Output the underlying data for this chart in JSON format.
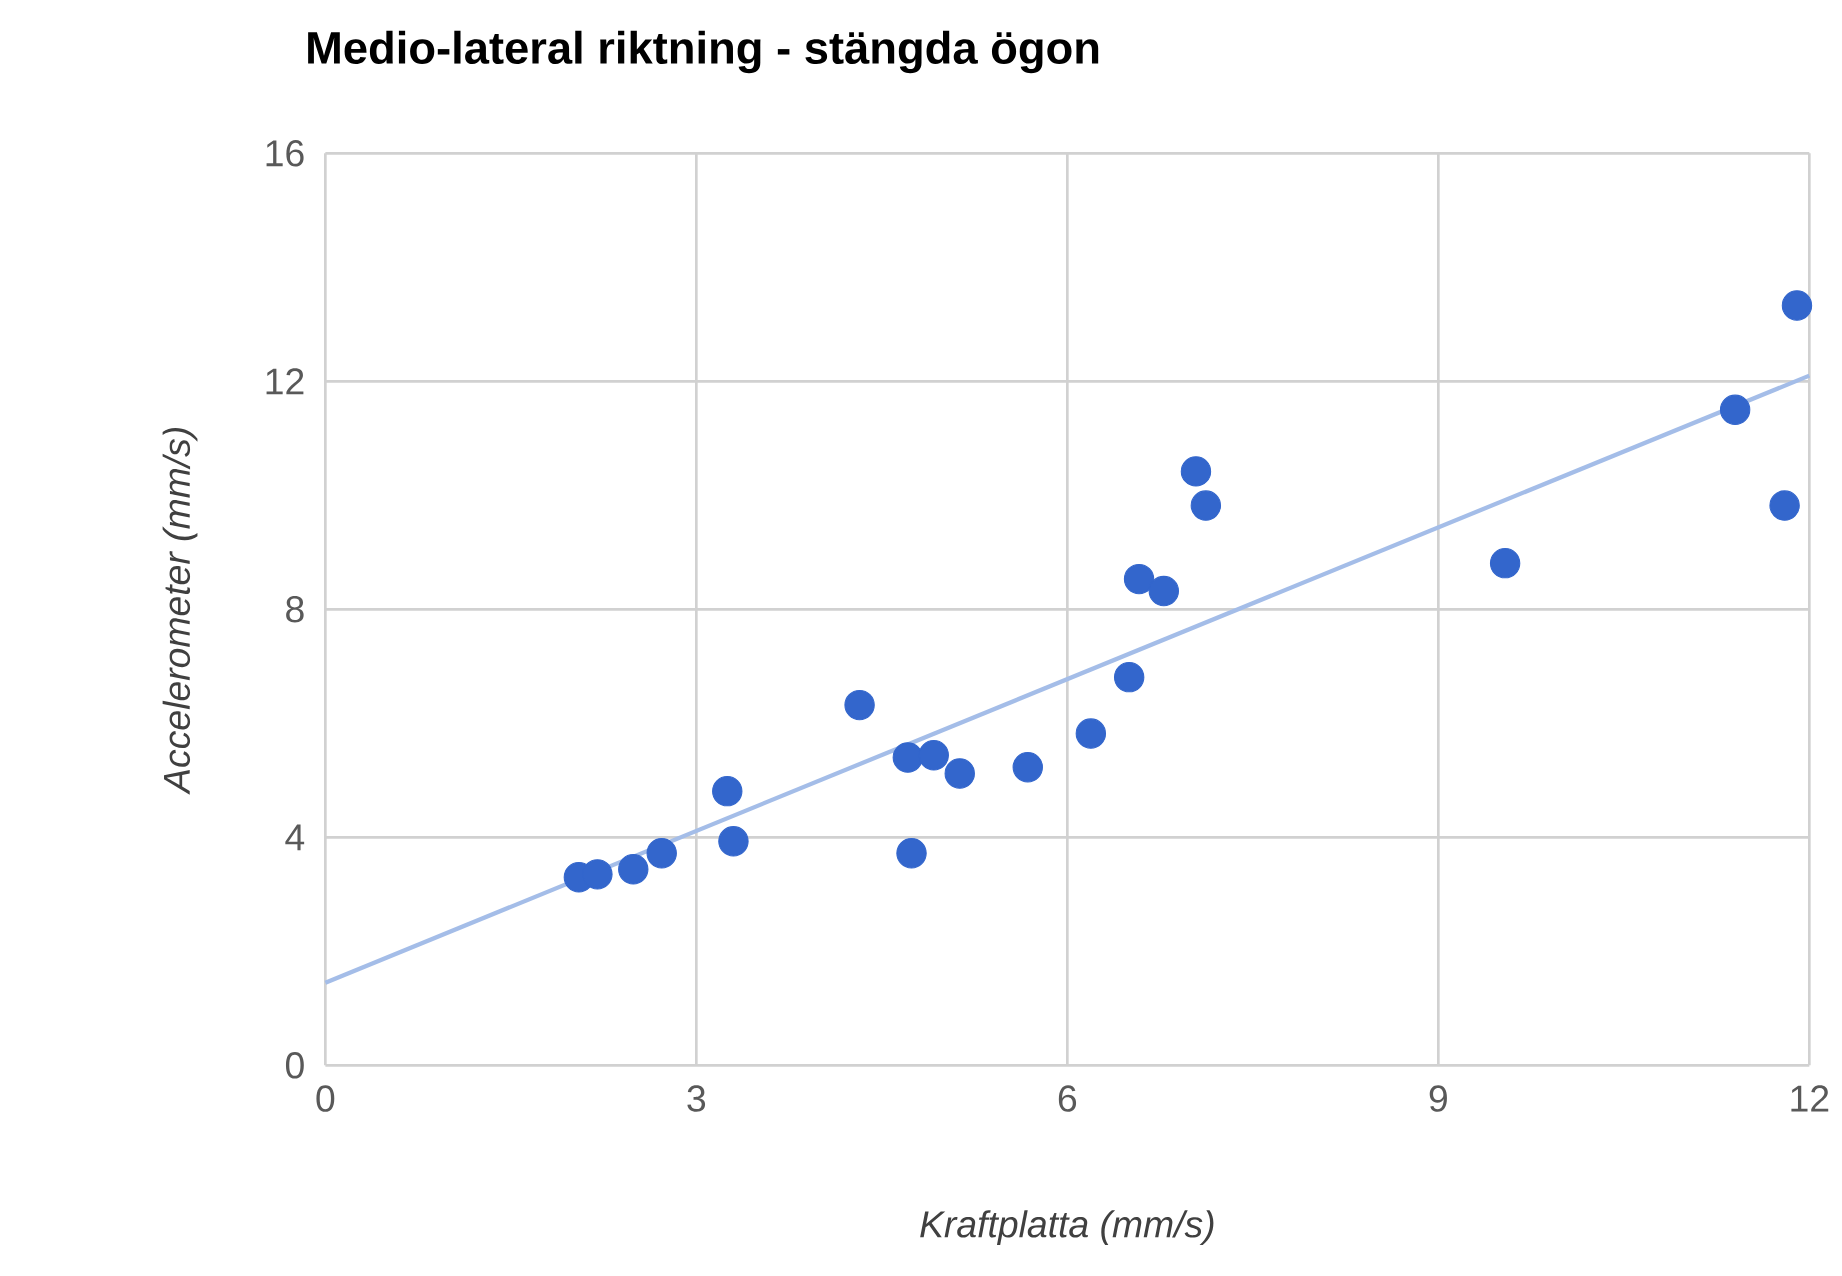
{
  "chart_data": {
    "type": "scatter",
    "title": "Medio-lateral riktning - stängda ögon",
    "xlabel": "Kraftplatta (mm/s)",
    "ylabel": "Accelerometer (mm/s)",
    "xlim": [
      0,
      12
    ],
    "xticks": [
      0,
      3,
      6,
      9,
      12
    ],
    "ylim": [
      0,
      16
    ],
    "yticks": [
      0,
      4,
      8,
      12,
      16
    ],
    "grid": true,
    "series": [
      {
        "marker": "circle",
        "color": "#3366cc",
        "x": [
          2.05,
          2.2,
          2.49,
          2.72,
          3.25,
          3.3,
          4.32,
          4.71,
          4.92,
          5.13,
          4.74,
          5.68,
          6.19,
          6.5,
          6.58,
          6.78,
          7.04,
          7.12,
          9.54,
          11.4,
          11.8,
          11.9
        ],
        "values": [
          3.3,
          3.35,
          3.44,
          3.72,
          4.81,
          3.93,
          6.32,
          5.4,
          5.44,
          5.12,
          3.72,
          5.23,
          5.82,
          6.81,
          8.53,
          8.32,
          10.42,
          9.82,
          8.81,
          11.5,
          9.82,
          13.33
        ]
      },
      {
        "type": "line",
        "marker": "none",
        "color": "#a4bde8",
        "x": [
          0,
          12
        ],
        "values": [
          1.45,
          12.1
        ]
      }
    ]
  }
}
